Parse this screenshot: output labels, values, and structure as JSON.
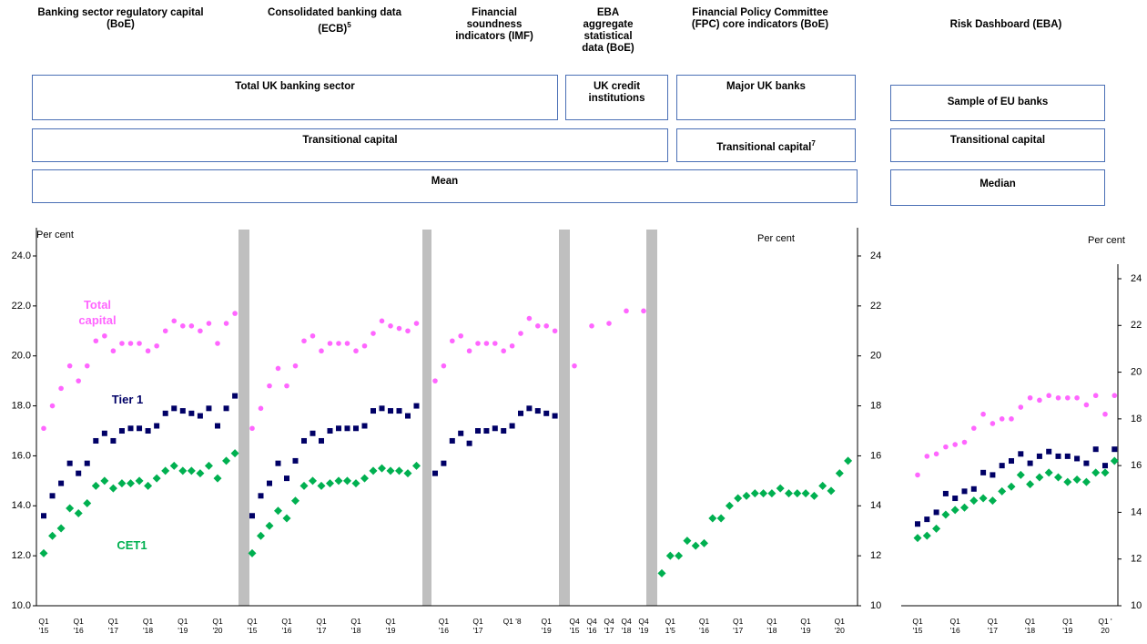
{
  "headers": [
    {
      "text": "Banking sector regulatory capital (BoE)"
    },
    {
      "text": "Consolidated banking data (ECB)",
      "sup": "5"
    },
    {
      "text": "Financial soundness indicators (IMF)"
    },
    {
      "text": "EBA aggregate statistical data (BoE)"
    },
    {
      "text": "Financial Policy Committee (FPC) core indicators (BoE)"
    },
    {
      "text": "Risk Dashboard (EBA)"
    }
  ],
  "boxes": [
    {
      "text": "Total UK banking sector"
    },
    {
      "text": "UK credit institutions"
    },
    {
      "text": "Major UK banks"
    },
    {
      "text": "Sample of EU banks"
    },
    {
      "text": "Transitional capital"
    },
    {
      "text": "Transitional capital",
      "sup": "7"
    },
    {
      "text": "Transitional capital"
    },
    {
      "text": "Mean"
    },
    {
      "text": "Median"
    }
  ],
  "chart_data": [
    {
      "type": "panel-dots",
      "y_label": "Per cent",
      "y2_label": "Per cent",
      "ylim": [
        10,
        24
      ],
      "yticks": [
        {
          "value": 10,
          "label": "10.0"
        },
        {
          "value": 12,
          "label": "12.0"
        },
        {
          "value": 14,
          "label": "14.0"
        },
        {
          "value": 16,
          "label": "16.0"
        },
        {
          "value": 18,
          "label": "18.0"
        },
        {
          "value": 20,
          "label": "20.0"
        },
        {
          "value": 22,
          "label": "22.0"
        },
        {
          "value": 24,
          "label": "24.0"
        }
      ],
      "y2lim": [
        10,
        24
      ],
      "y2ticks": [
        10,
        12,
        14,
        16,
        18,
        20,
        22,
        24
      ],
      "series": [
        {
          "name": "Total capital",
          "color": "#ff66ff",
          "marker": "circle"
        },
        {
          "name": "Tier 1",
          "color": "#000066",
          "marker": "square"
        },
        {
          "name": "CET1",
          "color": "#00b050",
          "marker": "diamond"
        }
      ],
      "panels": [
        {
          "categories": [
            "Q1 '15",
            null,
            null,
            null,
            "Q1 '16",
            null,
            null,
            null,
            "Q1 '17",
            null,
            null,
            null,
            "Q1 '18",
            null,
            null,
            null,
            "Q1 '19",
            null,
            null,
            null,
            "Q1 '20",
            null,
            null
          ],
          "values": [
            [
              17.1,
              18.0,
              18.7,
              19.6,
              19.0,
              19.6,
              20.6,
              20.8,
              20.2,
              20.5,
              20.5,
              20.5,
              20.2,
              20.4,
              21.0,
              21.4,
              21.2,
              21.2,
              21.0,
              21.3,
              20.5,
              21.3,
              21.7
            ],
            [
              13.6,
              14.4,
              14.9,
              15.7,
              15.3,
              15.7,
              16.6,
              16.9,
              16.6,
              17.0,
              17.1,
              17.1,
              17.0,
              17.2,
              17.7,
              17.9,
              17.8,
              17.7,
              17.6,
              17.9,
              17.2,
              17.9,
              18.4
            ],
            [
              12.1,
              12.8,
              13.1,
              13.9,
              13.7,
              14.1,
              14.8,
              15.0,
              14.7,
              14.9,
              14.9,
              15.0,
              14.8,
              15.1,
              15.4,
              15.6,
              15.4,
              15.4,
              15.3,
              15.6,
              15.1,
              15.8,
              16.1
            ]
          ]
        },
        {
          "categories": [
            "Q1 '15",
            null,
            null,
            null,
            "Q1 '16",
            null,
            null,
            null,
            "Q1 '17",
            null,
            null,
            null,
            "Q1 '18",
            null,
            null,
            null,
            "Q1 '19",
            null,
            null,
            null
          ],
          "values": [
            [
              17.1,
              17.9,
              18.8,
              19.5,
              18.8,
              19.6,
              20.6,
              20.8,
              20.2,
              20.5,
              20.5,
              20.5,
              20.2,
              20.4,
              20.9,
              21.4,
              21.2,
              21.1,
              21.0,
              21.3
            ],
            [
              13.6,
              14.4,
              14.9,
              15.7,
              15.1,
              15.8,
              16.6,
              16.9,
              16.6,
              17.0,
              17.1,
              17.1,
              17.1,
              17.2,
              17.8,
              17.9,
              17.8,
              17.8,
              17.6,
              18.0
            ],
            [
              12.1,
              12.8,
              13.2,
              13.8,
              13.5,
              14.2,
              14.8,
              15.0,
              14.8,
              14.9,
              15.0,
              15.0,
              14.9,
              15.1,
              15.4,
              15.5,
              15.4,
              15.4,
              15.3,
              15.6
            ]
          ]
        },
        {
          "categories": [
            null,
            "Q1 '16",
            null,
            null,
            null,
            "Q1 '17",
            null,
            null,
            null,
            "Q1 '8",
            null,
            null,
            null,
            "Q1 '19",
            null
          ],
          "values": [
            [
              19.0,
              19.6,
              20.6,
              20.8,
              20.2,
              20.5,
              20.5,
              20.5,
              20.2,
              20.4,
              20.9,
              21.5,
              21.2,
              21.2,
              21.0
            ],
            [
              15.3,
              15.7,
              16.6,
              16.9,
              16.5,
              17.0,
              17.0,
              17.1,
              17.0,
              17.2,
              17.7,
              17.9,
              17.8,
              17.7,
              17.6
            ],
            null
          ]
        },
        {
          "categories": [
            "Q4 '15",
            "Q4 '16",
            "Q4 '17",
            "Q4 '18",
            "Q4 '19"
          ],
          "values": [
            [
              19.6,
              21.2,
              21.3,
              21.8,
              21.8
            ],
            null,
            null
          ]
        },
        {
          "categories": [
            null,
            "Q1 1'5",
            null,
            null,
            null,
            "Q1 '16",
            null,
            null,
            null,
            "Q1 '17",
            null,
            null,
            null,
            "Q1 '18",
            null,
            null,
            null,
            "Q1 '19",
            null,
            null,
            null,
            "Q1 '20",
            null
          ],
          "values": [
            null,
            null,
            [
              11.3,
              12.0,
              12.0,
              12.6,
              12.4,
              12.5,
              13.5,
              13.5,
              14.0,
              14.3,
              14.4,
              14.5,
              14.5,
              14.5,
              14.7,
              14.5,
              14.5,
              14.5,
              14.4,
              14.8,
              14.6,
              15.3,
              15.8
            ]
          ]
        }
      ]
    },
    {
      "type": "panel-dots",
      "y2_label": "Per cent",
      "y2lim": [
        10,
        24
      ],
      "y2ticks": [
        10,
        12,
        14,
        16,
        18,
        20,
        22,
        24
      ],
      "series": [
        {
          "color": "#ff66ff",
          "marker": "circle",
          "axis": "y2"
        },
        {
          "color": "#000066",
          "marker": "square",
          "axis": "y2"
        },
        {
          "color": "#00b050",
          "marker": "diamond",
          "axis": "y2"
        }
      ],
      "panels": [
        {
          "categories": [
            "Q1 '15",
            null,
            null,
            null,
            "Q1 '16",
            null,
            null,
            null,
            "Q1 '17",
            null,
            null,
            null,
            "Q1 '18",
            null,
            null,
            null,
            "Q1 '19",
            null,
            null,
            null,
            "Q1 ' 20",
            null
          ],
          "values": [
            [
              15.6,
              16.4,
              16.5,
              16.8,
              16.9,
              17.0,
              17.6,
              18.2,
              17.8,
              18.0,
              18.0,
              18.5,
              18.9,
              18.8,
              19.0,
              18.9,
              18.9,
              18.9,
              18.6,
              19.0,
              18.2,
              19.0
            ],
            [
              13.5,
              13.7,
              14.0,
              14.8,
              14.6,
              14.9,
              15.0,
              15.7,
              15.6,
              16.0,
              16.2,
              16.5,
              16.1,
              16.4,
              16.6,
              16.4,
              16.4,
              16.3,
              16.1,
              16.7,
              16.0,
              16.7
            ],
            [
              12.9,
              13.0,
              13.3,
              13.9,
              14.1,
              14.2,
              14.5,
              14.6,
              14.5,
              14.9,
              15.1,
              15.6,
              15.2,
              15.5,
              15.7,
              15.5,
              15.3,
              15.4,
              15.3,
              15.7,
              15.7,
              16.2
            ]
          ]
        }
      ]
    }
  ]
}
